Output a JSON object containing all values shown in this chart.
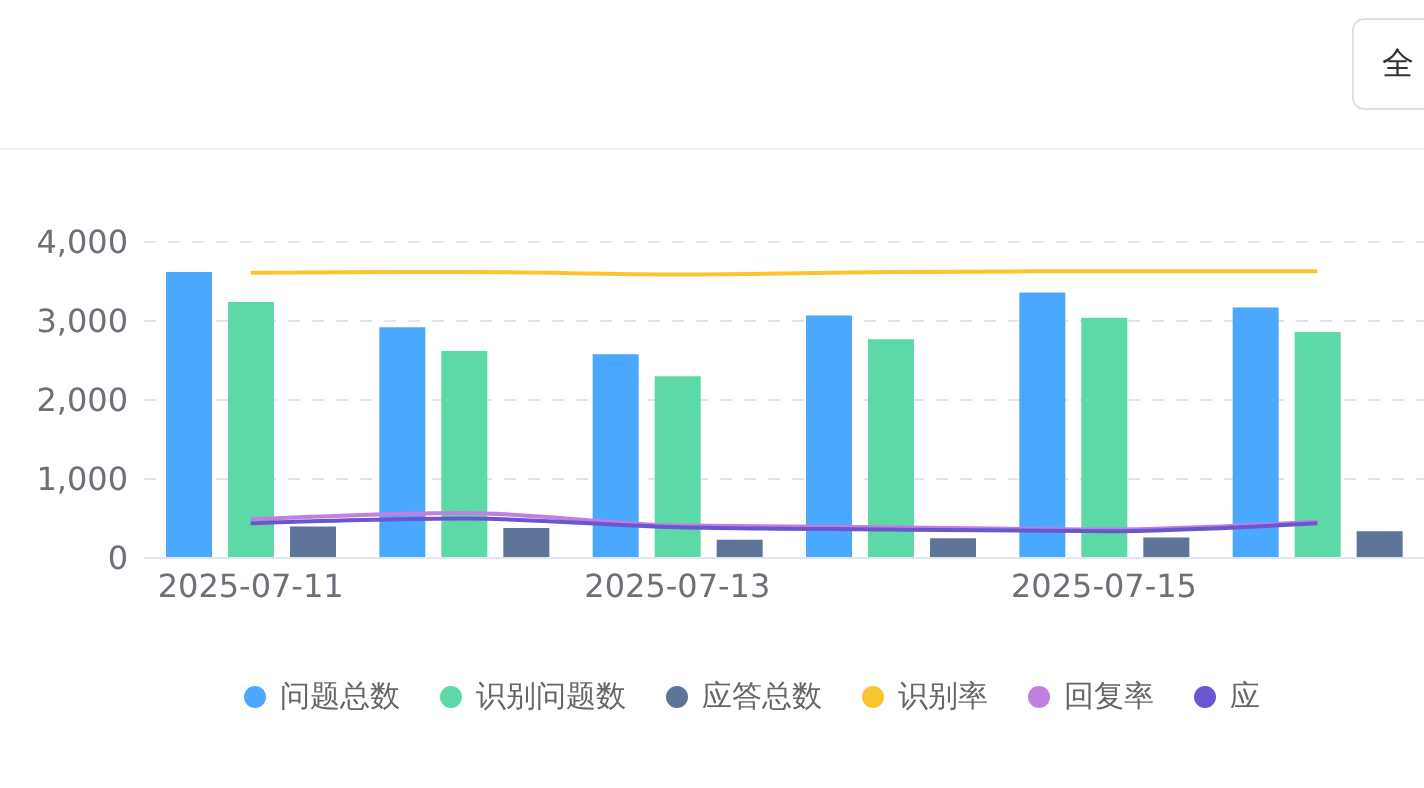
{
  "chart_data": {
    "type": "bar",
    "categories": [
      "2025-07-11",
      null,
      "2025-07-13",
      null,
      "2025-07-15",
      null
    ],
    "series": [
      {
        "name": "问题总数",
        "color": "#4ba8ff",
        "values": [
          3620,
          2920,
          2580,
          3070,
          3360,
          3170
        ]
      },
      {
        "name": "识别问题数",
        "color": "#5cd9a6",
        "values": [
          3240,
          2620,
          2300,
          2770,
          3040,
          2860
        ]
      },
      {
        "name": "应答总数",
        "color": "#5e7499",
        "values": [
          400,
          380,
          230,
          250,
          260,
          340
        ]
      },
      {
        "name": "识别率",
        "type": "line",
        "color": "#fac52e",
        "values": [
          3610,
          3620,
          3590,
          3620,
          3630,
          3630
        ]
      },
      {
        "name": "回复率",
        "type": "line",
        "color": "#c17fe0",
        "values": [
          490,
          570,
          410,
          390,
          360,
          460
        ]
      },
      {
        "name": "应",
        "type": "line",
        "color": "#6a57d0",
        "values": [
          440,
          500,
          390,
          360,
          340,
          440
        ]
      }
    ],
    "ylim": [
      0,
      4000
    ],
    "yticks": [
      0,
      {
        "value": 1000,
        "label": "1,000"
      },
      {
        "value": 2000,
        "label": "2,000"
      },
      {
        "value": 3000,
        "label": "3,000"
      },
      {
        "value": 4000,
        "label": "4,000"
      }
    ],
    "grid": "y",
    "legend": "bottom",
    "marker": "none",
    "annotations": [
      "全"
    ]
  }
}
